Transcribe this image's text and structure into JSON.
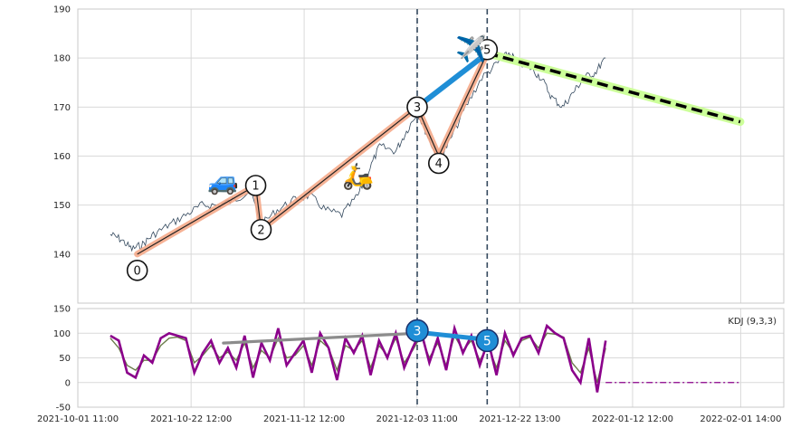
{
  "chart_data": [
    {
      "type": "line",
      "panel": "price",
      "ylim": [
        130,
        190
      ],
      "yticks": [
        140,
        150,
        160,
        170,
        180,
        190
      ],
      "grid": true,
      "x_dates": [
        "2021-10-01 11:00",
        "2021-10-22 12:00",
        "2021-11-12 12:00",
        "2021-12-03 11:00",
        "2021-12-22 13:00",
        "2022-01-12 12:00",
        "2022-02-01 14:00"
      ],
      "price_path": [
        {
          "x": "2021-10-07",
          "y": 144
        },
        {
          "x": "2021-10-09",
          "y": 143
        },
        {
          "x": "2021-10-11",
          "y": 141
        },
        {
          "x": "2021-10-13",
          "y": 142
        },
        {
          "x": "2021-10-15",
          "y": 144
        },
        {
          "x": "2021-10-18",
          "y": 146
        },
        {
          "x": "2021-10-21",
          "y": 148
        },
        {
          "x": "2021-10-24",
          "y": 150
        },
        {
          "x": "2021-10-27",
          "y": 150
        },
        {
          "x": "2021-10-30",
          "y": 151
        },
        {
          "x": "2021-11-02",
          "y": 153
        },
        {
          "x": "2021-11-04",
          "y": 146
        },
        {
          "x": "2021-11-07",
          "y": 149
        },
        {
          "x": "2021-11-10",
          "y": 151
        },
        {
          "x": "2021-11-13",
          "y": 152
        },
        {
          "x": "2021-11-16",
          "y": 149
        },
        {
          "x": "2021-11-19",
          "y": 148
        },
        {
          "x": "2021-11-22",
          "y": 152
        },
        {
          "x": "2021-11-24",
          "y": 157
        },
        {
          "x": "2021-11-26",
          "y": 162
        },
        {
          "x": "2021-11-29",
          "y": 161
        },
        {
          "x": "2021-12-01",
          "y": 165
        },
        {
          "x": "2021-12-03",
          "y": 169
        },
        {
          "x": "2021-12-05",
          "y": 164
        },
        {
          "x": "2021-12-07",
          "y": 159
        },
        {
          "x": "2021-12-09",
          "y": 163
        },
        {
          "x": "2021-12-12",
          "y": 170
        },
        {
          "x": "2021-12-15",
          "y": 176
        },
        {
          "x": "2021-12-18",
          "y": 179
        },
        {
          "x": "2021-12-20",
          "y": 181
        },
        {
          "x": "2021-12-22",
          "y": 179
        },
        {
          "x": "2021-12-24",
          "y": 178
        },
        {
          "x": "2021-12-26",
          "y": 176
        },
        {
          "x": "2021-12-28",
          "y": 172
        },
        {
          "x": "2021-12-30",
          "y": 170
        },
        {
          "x": "2022-01-01",
          "y": 173
        },
        {
          "x": "2022-01-03",
          "y": 176
        },
        {
          "x": "2022-01-05",
          "y": 177
        },
        {
          "x": "2022-01-07",
          "y": 180
        }
      ],
      "wave_points": [
        {
          "label": "0",
          "x": "2021-10-12",
          "y": 140
        },
        {
          "label": "1",
          "x": "2021-11-03",
          "y": 154
        },
        {
          "label": "2",
          "x": "2021-11-04",
          "y": 145
        },
        {
          "label": "3",
          "x": "2021-12-03",
          "y": 170
        },
        {
          "label": "4",
          "x": "2021-12-07",
          "y": 160
        },
        {
          "label": "5",
          "x": "2021-12-16",
          "y": 181
        }
      ],
      "blue_segment": [
        {
          "x": "2021-12-03",
          "y": 170
        },
        {
          "x": "2021-12-16",
          "y": 181
        }
      ],
      "projection": [
        {
          "x": "2021-12-16",
          "y": 181
        },
        {
          "x": "2022-02-01",
          "y": 167
        }
      ],
      "vlines": [
        "2021-12-03",
        "2021-12-16"
      ],
      "icons": [
        {
          "name": "car-icon",
          "glyph": "🚙",
          "x": "2021-10-28",
          "y": 155
        },
        {
          "name": "scooter-icon",
          "glyph": "🛵",
          "x": "2021-11-22",
          "y": 156
        },
        {
          "name": "airplane-icon",
          "glyph": "✈️",
          "x": "2021-12-13",
          "y": 182
        }
      ],
      "colors": {
        "price": "#34495e",
        "wave": "#f4a582",
        "blue": "#1f8ed6",
        "projection": "#000000",
        "projection_glow": "#ccff99",
        "vline": "#34495e"
      }
    },
    {
      "type": "line",
      "panel": "kdj",
      "legend_text": "KDJ (9,3,3)",
      "legend_placement": "top-right",
      "ylim": [
        -50,
        150
      ],
      "yticks": [
        -50,
        0,
        50,
        100,
        150
      ],
      "grid": true,
      "x_dates": [
        "2021-10-01 11:00",
        "2021-10-22 12:00",
        "2021-11-12 12:00",
        "2021-12-03 11:00",
        "2021-12-22 13:00",
        "2022-01-12 12:00",
        "2022-02-01 14:00"
      ],
      "series_k": [
        95,
        85,
        20,
        10,
        55,
        40,
        90,
        100,
        95,
        90,
        20,
        60,
        85,
        40,
        70,
        30,
        95,
        10,
        80,
        45,
        110,
        35,
        60,
        85,
        20,
        100,
        70,
        5,
        90,
        60,
        95,
        15,
        85,
        50,
        100,
        30,
        70,
        105,
        40,
        90,
        25,
        110,
        60,
        95,
        35,
        85,
        15,
        100,
        55,
        90,
        95,
        60,
        115,
        100,
        90,
        25,
        0,
        90,
        -20,
        85
      ],
      "series_d": [
        90,
        70,
        35,
        25,
        45,
        45,
        75,
        90,
        92,
        85,
        40,
        55,
        75,
        50,
        62,
        45,
        80,
        30,
        65,
        50,
        90,
        50,
        55,
        75,
        35,
        85,
        70,
        25,
        75,
        65,
        85,
        30,
        75,
        55,
        90,
        40,
        65,
        95,
        50,
        80,
        35,
        95,
        65,
        85,
        45,
        75,
        30,
        85,
        60,
        85,
        92,
        70,
        100,
        98,
        92,
        40,
        20,
        70,
        0,
        70
      ],
      "flat_tail": [
        {
          "x": "2022-01-07",
          "y": 0
        },
        {
          "x": "2022-02-01",
          "y": 0
        }
      ],
      "gray_segment": [
        {
          "x": "2021-10-28",
          "y": 80
        },
        {
          "x": "2021-12-03",
          "y": 100
        }
      ],
      "blue_segment": [
        {
          "x": "2021-12-03",
          "y": 102
        },
        {
          "x": "2021-12-16",
          "y": 87
        }
      ],
      "markers": [
        {
          "label": "3",
          "x": "2021-12-03",
          "y": 105
        },
        {
          "label": "5",
          "x": "2021-12-16",
          "y": 85
        }
      ],
      "colors": {
        "k": "#8b008b",
        "d": "#6b7c4b",
        "gray": "#8c8c8c",
        "blue": "#1f8ed6",
        "tail": "#8b008b"
      }
    }
  ]
}
